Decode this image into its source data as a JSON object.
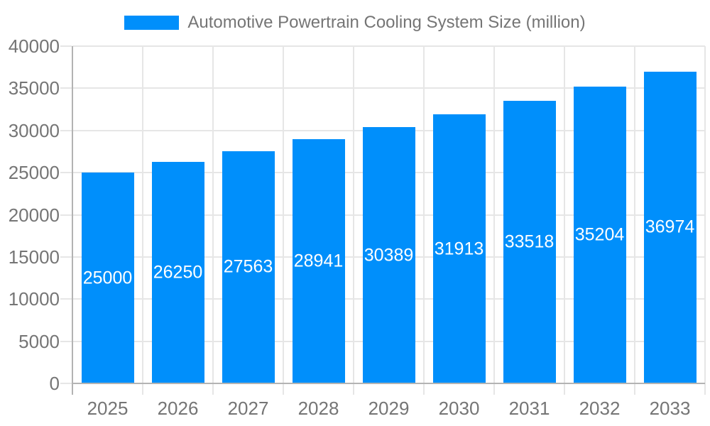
{
  "legend": {
    "label": "Automotive Powertrain Cooling System Size (million)"
  },
  "chart_data": {
    "type": "bar",
    "title": "Automotive Powertrain Cooling System Size (million)",
    "categories": [
      "2025",
      "2026",
      "2027",
      "2028",
      "2029",
      "2030",
      "2031",
      "2032",
      "2033"
    ],
    "values": [
      25000,
      26250,
      27563,
      28941,
      30389,
      31913,
      33518,
      35204,
      36974
    ],
    "bar_labels": [
      "25000",
      "26250",
      "27563",
      "28941",
      "30389",
      "31913",
      "33518",
      "35204",
      "36974"
    ],
    "xlabel": "",
    "ylabel": "",
    "ylim": [
      0,
      40000
    ],
    "ytick_step": 5000,
    "ytick_labels": [
      "0",
      "5000",
      "10000",
      "15000",
      "20000",
      "25000",
      "30000",
      "35000",
      "40000"
    ],
    "grid": true,
    "legend_position": "top",
    "colors": {
      "bar": "#008FFB",
      "axis_label": "#757575",
      "grid_line": "#e6e6e6",
      "axis_line": "#b3b3b3",
      "data_label": "#ffffff",
      "background": "#ffffff"
    }
  }
}
